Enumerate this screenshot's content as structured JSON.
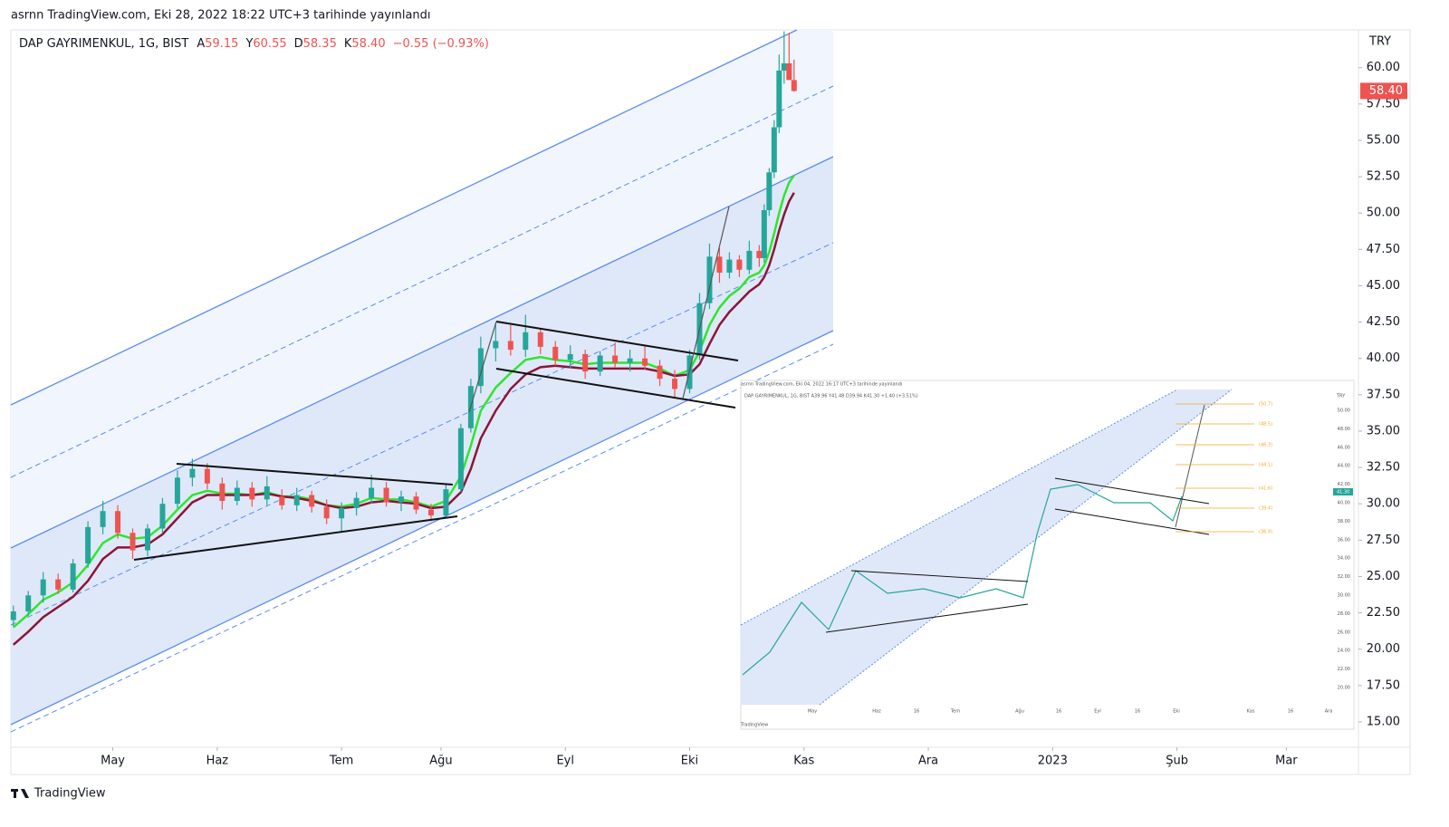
{
  "header": "asrnn TradingView.com, Eki 28, 2022 18:22 UTC+3 tarihinde yayınlandı",
  "chart_data": {
    "type": "candlestick",
    "title": "DAP GAYRIMENKUL, 1G, BIST",
    "ohlc_legend": [
      {
        "label": "A",
        "value": "59.15"
      },
      {
        "label": "Y",
        "value": "60.55"
      },
      {
        "label": "D",
        "value": "58.35"
      },
      {
        "label": "K",
        "value": "58.40"
      }
    ],
    "change_label": "−0.55 (−0.93%)",
    "currency": "TRY",
    "price_tag": {
      "value": 58.4,
      "label": "58.40"
    },
    "up_color": "#26a69a",
    "down_color": "#ef5350",
    "x": [
      0,
      3,
      6,
      9,
      12,
      15,
      18,
      21,
      24,
      27,
      30,
      33,
      36,
      39,
      42,
      45,
      48,
      51,
      54,
      57,
      60,
      63,
      66,
      69,
      72,
      75,
      78,
      81,
      84,
      87,
      90,
      92,
      94,
      97,
      100,
      103,
      106,
      109,
      112,
      115,
      118,
      121,
      124,
      127,
      130,
      133,
      136,
      138,
      140,
      142,
      144,
      146,
      148,
      150,
      151,
      152,
      153,
      154,
      155,
      156,
      157
    ],
    "open": [
      22.0,
      22.6,
      23.7,
      24.8,
      24.1,
      25.9,
      28.4,
      29.5,
      28.0,
      26.8,
      28.3,
      30.0,
      31.8,
      32.4,
      31.4,
      30.2,
      31.1,
      30.3,
      30.5,
      29.9,
      30.6,
      29.8,
      29.0,
      29.7,
      30.4,
      31.1,
      30.1,
      30.5,
      29.6,
      29.2,
      31.0,
      35.2,
      38.1,
      40.7,
      41.2,
      40.6,
      41.8,
      40.8,
      39.9,
      40.3,
      39.1,
      40.2,
      39.7,
      40.0,
      39.5,
      38.6,
      37.9,
      40.2,
      43.8,
      47.0,
      45.9,
      46.8,
      46.1,
      47.4,
      46.9,
      50.2,
      52.8,
      55.9,
      59.8,
      60.3,
      59.15
    ],
    "high": [
      23.0,
      24.0,
      25.3,
      25.2,
      26.2,
      28.8,
      30.2,
      29.9,
      28.3,
      28.6,
      30.4,
      32.3,
      33.1,
      32.8,
      31.8,
      31.6,
      31.5,
      31.9,
      31.0,
      31.1,
      30.9,
      30.3,
      30.1,
      30.8,
      32.0,
      31.5,
      30.9,
      30.8,
      30.0,
      31.3,
      35.5,
      38.6,
      41.5,
      42.4,
      42.3,
      43.0,
      42.1,
      41.2,
      40.9,
      40.6,
      40.5,
      41.1,
      40.6,
      40.9,
      39.9,
      39.2,
      40.6,
      44.5,
      47.9,
      47.6,
      47.3,
      47.1,
      48.1,
      47.8,
      50.6,
      53.1,
      56.4,
      60.9,
      62.5,
      62.4,
      60.55
    ],
    "low": [
      21.6,
      22.3,
      23.2,
      23.8,
      23.9,
      25.6,
      27.9,
      27.6,
      26.2,
      26.4,
      28.0,
      29.7,
      31.2,
      31.0,
      29.6,
      29.9,
      29.8,
      29.9,
      29.6,
      29.5,
      29.4,
      28.6,
      28.1,
      29.2,
      30.0,
      29.8,
      29.5,
      29.3,
      28.8,
      29.0,
      30.8,
      34.9,
      37.6,
      39.8,
      40.2,
      40.1,
      40.3,
      39.5,
      39.3,
      38.6,
      38.8,
      39.4,
      39.1,
      39.2,
      38.1,
      37.3,
      37.6,
      39.9,
      43.4,
      45.2,
      45.5,
      45.6,
      45.8,
      46.3,
      46.6,
      49.8,
      52.4,
      55.5,
      58.9,
      59.3,
      58.35
    ],
    "close": [
      22.6,
      23.7,
      24.8,
      24.1,
      25.9,
      28.4,
      29.5,
      28.0,
      26.8,
      28.3,
      30.0,
      31.8,
      32.4,
      31.4,
      30.2,
      31.1,
      30.3,
      31.2,
      29.9,
      30.6,
      29.8,
      29.0,
      29.7,
      30.4,
      31.1,
      30.1,
      30.5,
      29.6,
      29.2,
      31.0,
      35.2,
      38.1,
      40.7,
      41.2,
      40.6,
      41.8,
      40.8,
      39.9,
      40.3,
      39.1,
      40.2,
      39.7,
      40.0,
      39.5,
      38.6,
      37.9,
      40.2,
      43.8,
      47.0,
      45.9,
      46.8,
      46.1,
      47.4,
      46.9,
      50.2,
      52.8,
      55.9,
      59.8,
      60.3,
      59.15,
      58.4
    ],
    "series": [
      {
        "color": "#2ee62e",
        "values": [
          21.5,
          22.4,
          23.4,
          23.9,
          24.6,
          25.8,
          27.3,
          27.9,
          27.6,
          27.7,
          28.5,
          29.6,
          30.6,
          30.9,
          30.7,
          30.7,
          30.6,
          30.8,
          30.5,
          30.5,
          30.3,
          29.9,
          29.8,
          30.0,
          30.4,
          30.3,
          30.3,
          30.1,
          29.8,
          30.2,
          31.9,
          34.0,
          36.4,
          38.0,
          39.0,
          39.9,
          40.1,
          39.9,
          39.8,
          39.6,
          39.7,
          39.7,
          39.7,
          39.7,
          39.3,
          38.8,
          39.2,
          40.5,
          42.3,
          43.5,
          44.3,
          44.8,
          45.6,
          45.9,
          46.4,
          47.3,
          48.6,
          50.0,
          51.2,
          52.1,
          52.6
        ]
      },
      {
        "color": "#8b1538",
        "values": [
          20.3,
          21.2,
          22.2,
          22.9,
          23.6,
          24.7,
          26.2,
          27.0,
          27.0,
          27.2,
          27.9,
          29.0,
          30.1,
          30.6,
          30.6,
          30.6,
          30.6,
          30.7,
          30.5,
          30.4,
          30.2,
          29.9,
          29.7,
          29.8,
          30.1,
          30.2,
          30.1,
          30.0,
          29.7,
          29.8,
          30.8,
          32.4,
          34.5,
          36.4,
          37.9,
          38.9,
          39.4,
          39.5,
          39.4,
          39.3,
          39.3,
          39.3,
          39.3,
          39.3,
          39.1,
          38.8,
          38.9,
          39.6,
          41.0,
          42.3,
          43.2,
          43.9,
          44.6,
          45.1,
          45.6,
          46.4,
          47.5,
          48.8,
          49.9,
          50.8,
          51.4
        ]
      }
    ],
    "xlim": [
      -0.5,
      270.5
    ],
    "xticks": [
      {
        "value": 20,
        "label": "May"
      },
      {
        "value": 41,
        "label": "Haz"
      },
      {
        "value": 66,
        "label": "Tem"
      },
      {
        "value": 86,
        "label": "Ağu"
      },
      {
        "value": 111,
        "label": "Eyl"
      },
      {
        "value": 136,
        "label": "Eki"
      },
      {
        "value": 159,
        "label": "Kas"
      },
      {
        "value": 184,
        "label": "Ara"
      },
      {
        "value": 209,
        "label": "2023"
      },
      {
        "value": 234,
        "label": "Şub"
      },
      {
        "value": 256,
        "label": "Mar"
      }
    ],
    "ylim": [
      13.25,
      62.6
    ],
    "yticks": [
      {
        "value": 60,
        "label": "60.00"
      },
      {
        "value": 57.5,
        "label": "57.50"
      },
      {
        "value": 55,
        "label": "55.00"
      },
      {
        "value": 52.5,
        "label": "52.50"
      },
      {
        "value": 50,
        "label": "50.00"
      },
      {
        "value": 47.5,
        "label": "47.50"
      },
      {
        "value": 45,
        "label": "45.00"
      },
      {
        "value": 42.5,
        "label": "42.50"
      },
      {
        "value": 40,
        "label": "40.00"
      },
      {
        "value": 37.5,
        "label": "37.50"
      },
      {
        "value": 35,
        "label": "35.00"
      },
      {
        "value": 32.5,
        "label": "32.50"
      },
      {
        "value": 30,
        "label": "30.00"
      },
      {
        "value": 27.5,
        "label": "27.50"
      },
      {
        "value": 25,
        "label": "25.00"
      },
      {
        "value": 22.5,
        "label": "22.50"
      },
      {
        "value": 20,
        "label": "20.00"
      },
      {
        "value": 17.5,
        "label": "17.50"
      },
      {
        "value": 15,
        "label": "15.00"
      }
    ]
  },
  "inset": {
    "header": "asrnn TradingView.com, Eki 04, 2022 16:17 UTC+3 tarihinde yayınlandı",
    "title": "DAP GAYRIMENKUL, 1G, BIST  A39.96  Y41.48  D39.94  K41.30  +1.40 (+3.51%)",
    "currency": "TRY",
    "price_tag": "41.30",
    "y_labels": [
      "50.00",
      "48.00",
      "46.00",
      "44.00",
      "42.00",
      "40.00",
      "38.00",
      "36.00",
      "34.00",
      "32.00",
      "30.00",
      "28.00",
      "26.00",
      "24.00",
      "22.00",
      "20.00"
    ],
    "x_labels": [
      "May",
      "Haz",
      "16",
      "Tem",
      "Ağu",
      "16",
      "Eyl",
      "16",
      "Eki",
      "Kas",
      "16",
      "Ara"
    ],
    "fib_labels": [
      "(50.7)",
      "(48.5)",
      "(46.3)",
      "(44.1)",
      "(41.6)",
      "(39.4)",
      "(36.9)"
    ],
    "brand": "TradingView"
  },
  "footer": "TradingView"
}
